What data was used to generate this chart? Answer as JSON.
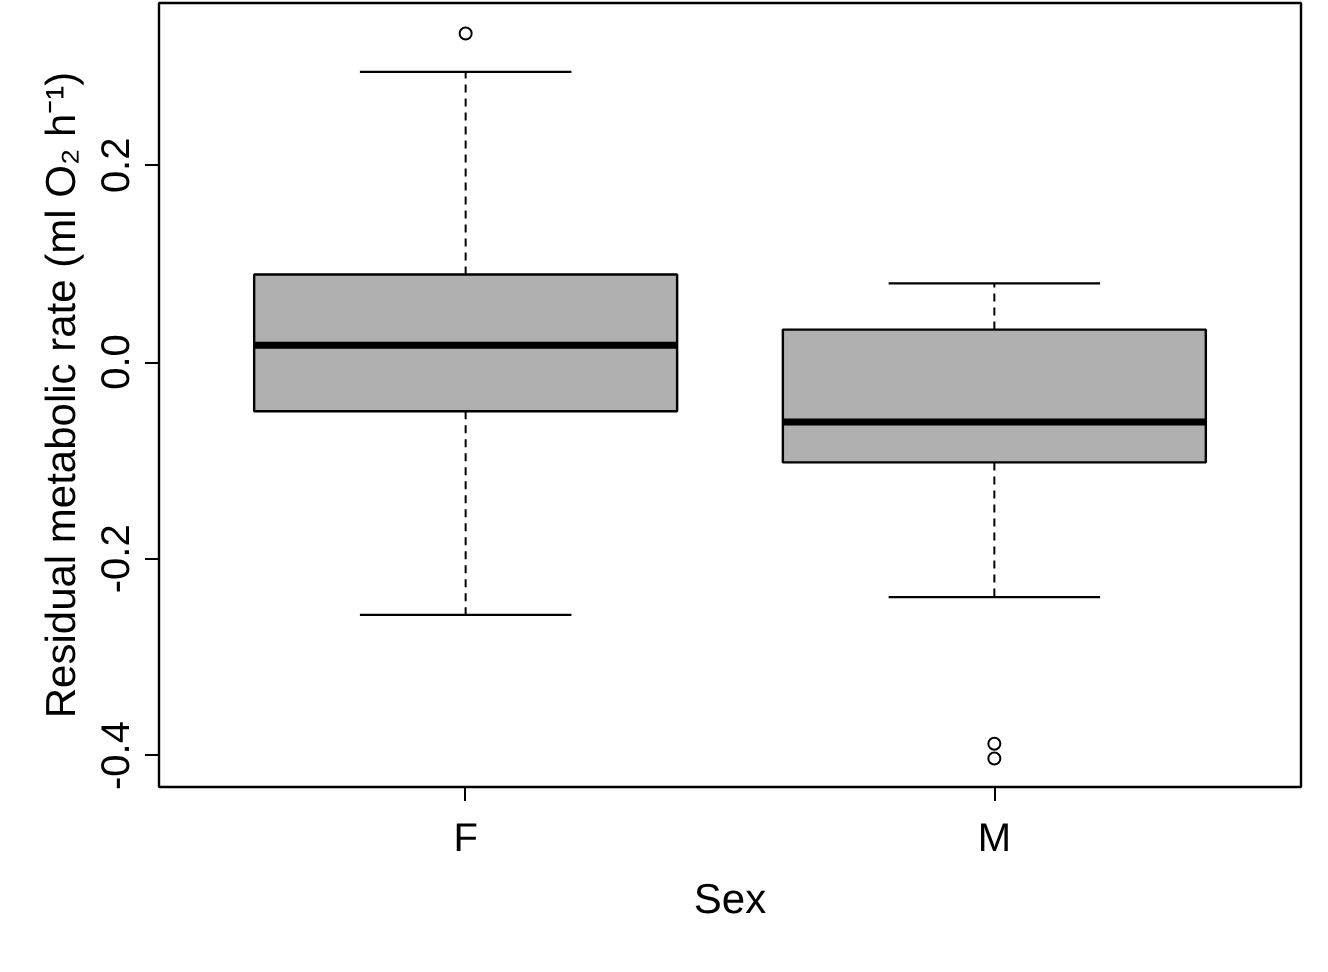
{
  "chart_data": {
    "type": "box",
    "categories": [
      "F",
      "M"
    ],
    "xlabel": "Sex",
    "ylabel": "Residual metabolic rate (ml O₂ h⁻¹)",
    "ylim": [
      -0.432,
      0.365
    ],
    "yticks": [
      {
        "value": -0.4,
        "label": "-0.4"
      },
      {
        "value": -0.2,
        "label": "-0.2"
      },
      {
        "value": 0.0,
        "label": "0.0"
      },
      {
        "value": 0.2,
        "label": "0.2"
      }
    ],
    "color": "#b0b0b0",
    "grid": false,
    "boxes": [
      {
        "low": -0.257,
        "q1": -0.05,
        "median": 0.017,
        "q3": 0.089,
        "high": 0.295,
        "outliers": [
          0.334
        ]
      },
      {
        "low": -0.239,
        "q1": -0.102,
        "median": -0.061,
        "q3": 0.033,
        "high": 0.08,
        "outliers": [
          -0.388,
          -0.403
        ]
      }
    ]
  }
}
